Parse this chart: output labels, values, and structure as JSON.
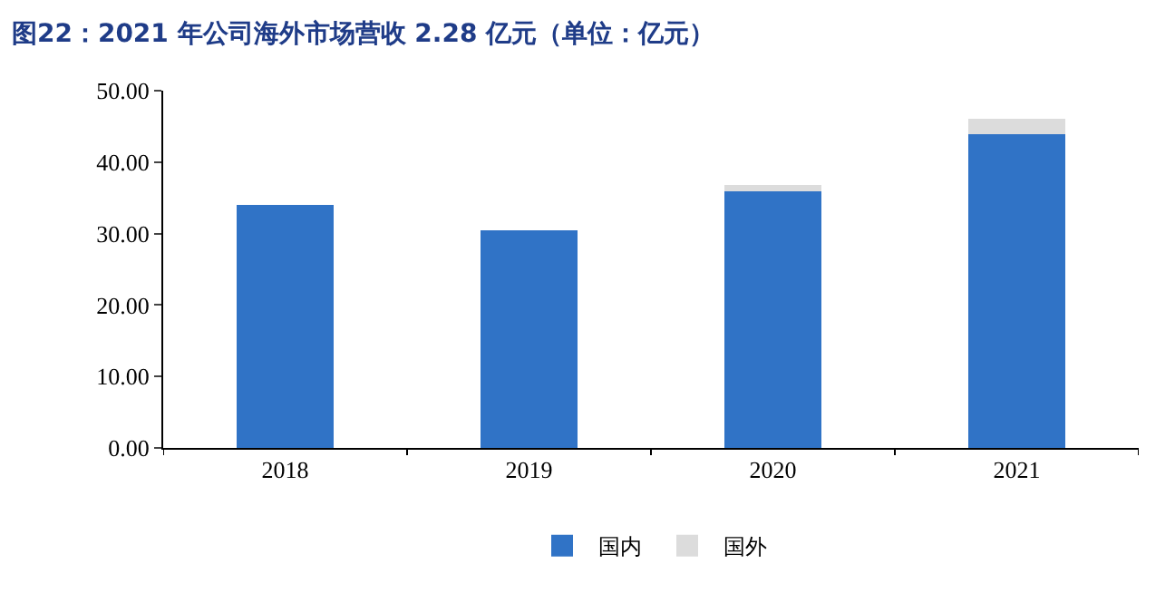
{
  "chart_data": {
    "type": "bar",
    "title": "图22：2021 年公司海外市场营收 2.28 亿元（单位：亿元）",
    "categories": [
      "2018",
      "2019",
      "2020",
      "2021"
    ],
    "series": [
      {
        "name": "国内",
        "color": "#3073c6",
        "values": [
          34.0,
          30.4,
          35.9,
          43.9
        ]
      },
      {
        "name": "国外",
        "color": "#dcdcdc",
        "values": [
          0,
          0,
          0.9,
          2.2
        ]
      }
    ],
    "stacked": true,
    "ylim": [
      0,
      50
    ],
    "yticks": [
      {
        "value": 0,
        "label": "0.00"
      },
      {
        "value": 10,
        "label": "10.00"
      },
      {
        "value": 20,
        "label": "20.00"
      },
      {
        "value": 30,
        "label": "30.00"
      },
      {
        "value": 40,
        "label": "40.00"
      },
      {
        "value": 50,
        "label": "50.00"
      }
    ],
    "legend": "bottom"
  }
}
